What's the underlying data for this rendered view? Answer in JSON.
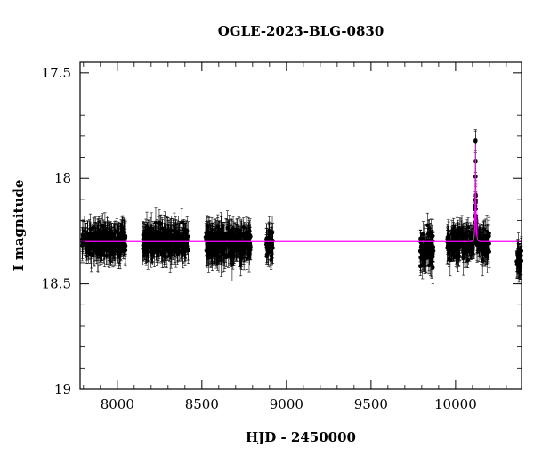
{
  "chart_data": {
    "type": "scatter",
    "title": "OGLE-2023-BLG-0830",
    "xlabel": "HJD - 2450000",
    "ylabel": "I magnitude",
    "xlim": [
      7780,
      10390
    ],
    "ylim": [
      19.0,
      17.45
    ],
    "y_inverted": true,
    "x_ticks": [
      8000,
      8500,
      9000,
      9500,
      10000
    ],
    "x_tick_labels": [
      "8000",
      "8500",
      "9000",
      "9500",
      "10000"
    ],
    "y_ticks": [
      17.5,
      18.0,
      18.5,
      19.0
    ],
    "y_tick_labels": [
      "17.5",
      "18",
      "18.5",
      "19"
    ],
    "grid": false,
    "series": [
      {
        "kind": "observations",
        "color": "#000000",
        "segments": [
          {
            "x_start": 7790,
            "x_end": 8050,
            "baseline_mag": 18.3,
            "scatter": 0.06
          },
          {
            "x_start": 8150,
            "x_end": 8420,
            "baseline_mag": 18.3,
            "scatter": 0.06
          },
          {
            "x_start": 8520,
            "x_end": 8790,
            "baseline_mag": 18.31,
            "scatter": 0.07
          },
          {
            "x_start": 8880,
            "x_end": 8920,
            "baseline_mag": 18.32,
            "scatter": 0.06
          },
          {
            "x_start": 9790,
            "x_end": 9870,
            "baseline_mag": 18.34,
            "scatter": 0.08
          },
          {
            "x_start": 9950,
            "x_end": 10200,
            "baseline_mag": 18.31,
            "scatter": 0.06
          },
          {
            "x_start": 10360,
            "x_end": 10390,
            "baseline_mag": 18.38,
            "scatter": 0.04
          }
        ],
        "typical_error": 0.06,
        "event": {
          "t0": 10118,
          "peak_mag": 17.82,
          "u0": 0.07,
          "tE": 6
        }
      },
      {
        "kind": "model",
        "color": "#ff00ff",
        "baseline_mag": 18.3,
        "t0": 10118,
        "peak_mag": 17.84,
        "u0": 0.07,
        "tE": 6
      }
    ]
  }
}
